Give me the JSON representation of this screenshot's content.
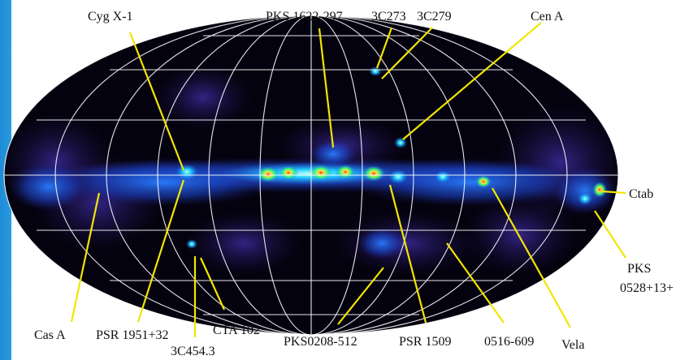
{
  "figure": {
    "sources": [
      {
        "id": "cyg-x1",
        "text": "Cyg X-1"
      },
      {
        "id": "pks1622",
        "text": "PKS 1622-297"
      },
      {
        "id": "3c273",
        "text": "3C273"
      },
      {
        "id": "3c279",
        "text": "3C279"
      },
      {
        "id": "cen-a",
        "text": "Cen A"
      },
      {
        "id": "crab",
        "text": "Ctab"
      },
      {
        "id": "pks0528-a",
        "text": "PKS"
      },
      {
        "id": "pks0528-b",
        "text": "0528+13+"
      },
      {
        "id": "cas-a",
        "text": "Cas A"
      },
      {
        "id": "psr1951",
        "text": "PSR 1951+32"
      },
      {
        "id": "cta102",
        "text": "CTA 102"
      },
      {
        "id": "3c454",
        "text": "3C454.3"
      },
      {
        "id": "pks0208",
        "text": "PKS0208-512"
      },
      {
        "id": "psr1509",
        "text": "PSR 1509"
      },
      {
        "id": "0516",
        "text": "0516-609"
      },
      {
        "id": "vela",
        "text": "Vela"
      }
    ],
    "colors": {
      "background_left": "#1e8bd6",
      "map_bg": "#05020f",
      "grid": "#ffffff",
      "pointer": "#f2e600",
      "emission_blue": "#1e6cff",
      "emission_cyan": "#22d4ff",
      "emission_green": "#3cff6a",
      "emission_red": "#ff2b2b"
    }
  }
}
